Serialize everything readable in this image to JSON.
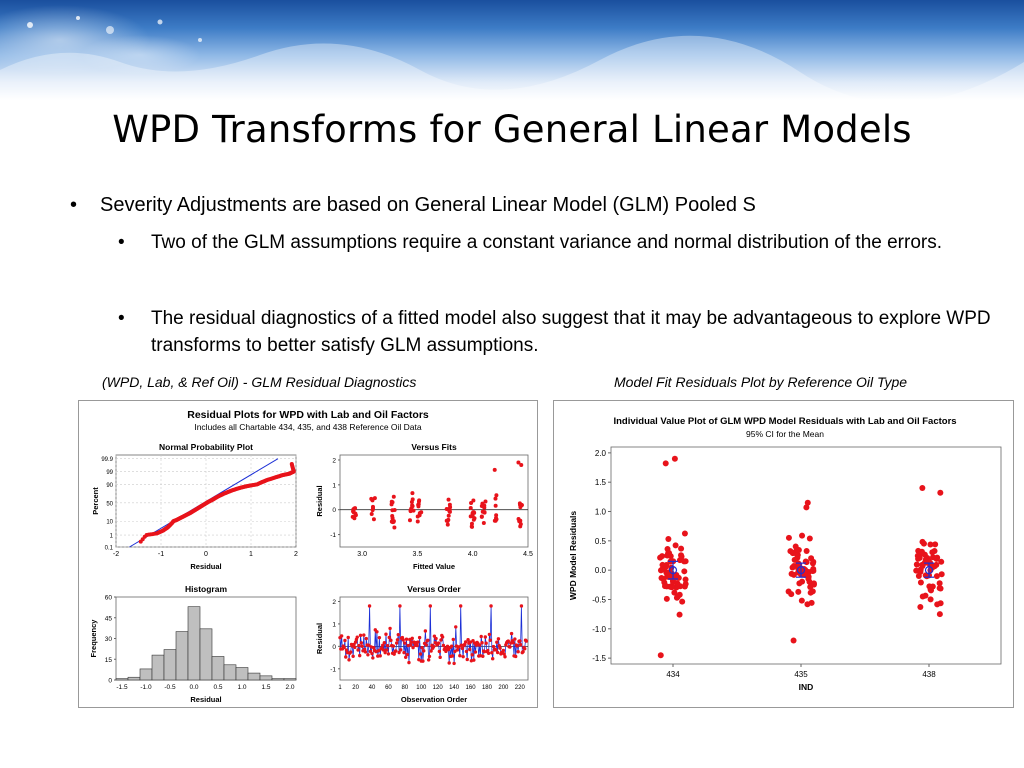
{
  "slide": {
    "title": "WPD Transforms for General Linear Models",
    "bullet_main": "Severity Adjustments are based on General Linear Model (GLM) Pooled S",
    "sub_bullets": [
      "Two of the GLM assumptions require a constant variance and normal distribution of the errors.",
      "The residual diagnostics of a fitted model also suggest that it may be advantageous to explore WPD transforms to better satisfy GLM assumptions."
    ],
    "bullet_glyph": "•",
    "caption_left": "(WPD, Lab, & Ref Oil) - GLM  Residual Diagnostics",
    "caption_right": "Model Fit Residuals Plot by Reference Oil Type",
    "colors": {
      "points": "#e8131b",
      "lines": "#1b2fd6",
      "bars": "#bfbfbf",
      "banner": "#1a4f9e"
    }
  },
  "left_figure": {
    "title": "Residual Plots for WPD with Lab and Oil Factors",
    "subtitle": "Includes all Chartable 434, 435, and 438 Reference Oil Data"
  },
  "chart_data": [
    {
      "type": "scatter",
      "title": "Normal Probability Plot",
      "xlabel": "Residual",
      "ylabel": "Percent",
      "xticks": [
        "-2",
        "-1",
        "0",
        "1",
        "2"
      ],
      "yticks": [
        "0.1",
        "1",
        "10",
        "50",
        "90",
        "99",
        "99.9"
      ],
      "xlim": [
        -2,
        2
      ],
      "series": [
        {
          "values": [
            [
              -1.45,
              0.5
            ],
            [
              -1.1,
              2
            ],
            [
              -0.95,
              4
            ],
            [
              -0.85,
              6
            ],
            [
              -0.75,
              9
            ],
            [
              -0.65,
              13
            ],
            [
              -0.55,
              18
            ],
            [
              -0.45,
              23
            ],
            [
              -0.35,
              28
            ],
            [
              -0.25,
              34
            ],
            [
              -0.15,
              40
            ],
            [
              -0.05,
              46
            ],
            [
              0.05,
              52
            ],
            [
              0.15,
              57
            ],
            [
              0.25,
              63
            ],
            [
              0.4,
              70
            ],
            [
              0.55,
              76
            ],
            [
              0.7,
              81
            ],
            [
              0.85,
              85
            ],
            [
              1.0,
              88
            ],
            [
              1.2,
              91
            ],
            [
              1.35,
              93
            ],
            [
              1.55,
              95
            ],
            [
              1.7,
              96.5
            ],
            [
              1.85,
              97.5
            ],
            [
              1.95,
              99
            ],
            [
              1.9,
              99.6
            ]
          ]
        }
      ],
      "fit_line": [
        [
          -1.7,
          0.1
        ],
        [
          1.6,
          99.9
        ]
      ]
    },
    {
      "type": "scatter",
      "title": "Versus Fits",
      "xlabel": "Fitted Value",
      "ylabel": "Residual",
      "xticks": [
        "3.0",
        "3.5",
        "4.0",
        "4.5"
      ],
      "yticks": [
        "-1",
        "0",
        "1",
        "2"
      ],
      "xlim": [
        2.8,
        4.5
      ],
      "ylim": [
        -1.5,
        2.2
      ],
      "x_columns": [
        2.93,
        3.1,
        3.28,
        3.45,
        3.52,
        3.78,
        4.0,
        4.1,
        4.2,
        4.43
      ],
      "reference_line": 0
    },
    {
      "type": "bar",
      "title": "Histogram",
      "xlabel": "Residual",
      "ylabel": "Frequency",
      "categories": [
        "-1.5",
        "-1.25",
        "-1.0",
        "-0.75",
        "-0.5",
        "-0.25",
        "0.0",
        "0.25",
        "0.5",
        "0.75",
        "1.0",
        "1.25",
        "1.5",
        "1.75",
        "2.0"
      ],
      "values": [
        1,
        2,
        8,
        18,
        22,
        35,
        53,
        37,
        17,
        11,
        9,
        5,
        3,
        1,
        1
      ],
      "xticks": [
        "-1.5",
        "-1.0",
        "-0.5",
        "0.0",
        "0.5",
        "1.0",
        "1.5",
        "2.0"
      ],
      "yticks": [
        "0",
        "15",
        "30",
        "45",
        "60"
      ],
      "ylim": [
        0,
        60
      ]
    },
    {
      "type": "line",
      "title": "Versus Order",
      "xlabel": "Observation Order",
      "ylabel": "Residual",
      "xticks": [
        "1",
        "20",
        "40",
        "60",
        "80",
        "100",
        "120",
        "140",
        "160",
        "180",
        "200",
        "220"
      ],
      "yticks": [
        "-1",
        "0",
        "1",
        "2"
      ],
      "xlim": [
        1,
        230
      ],
      "ylim": [
        -1.5,
        2.2
      ],
      "reference_line": 0
    },
    {
      "type": "scatter",
      "title": "Individual Value Plot of GLM WPD Model Residuals with Lab and Oil Factors",
      "subtitle": "95% CI for the Mean",
      "xlabel": "IND",
      "ylabel": "WPD Model Residuals",
      "categories": [
        "434",
        "435",
        "438"
      ],
      "yticks": [
        "-1.5",
        "-1.0",
        "-0.5",
        "0.0",
        "0.5",
        "1.0",
        "1.5",
        "2.0"
      ],
      "ylim": [
        -1.6,
        2.1
      ],
      "means": [
        0.0,
        0.0,
        0.0
      ],
      "ci": [
        [
          -0.15,
          0.15
        ],
        [
          -0.12,
          0.12
        ],
        [
          -0.12,
          0.12
        ]
      ],
      "ranges": [
        [
          -1.45,
          1.9
        ],
        [
          -1.2,
          1.15
        ],
        [
          -0.75,
          1.4
        ]
      ]
    }
  ]
}
